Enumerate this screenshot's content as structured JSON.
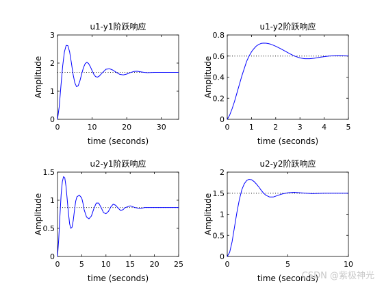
{
  "watermark": "CSDN @紫极神光",
  "chart_data": [
    {
      "type": "line",
      "title": "u1-y1阶跃响应",
      "xlabel": "time (seconds)",
      "ylabel": "Amplitude",
      "xlim": [
        0,
        35
      ],
      "ylim": [
        0,
        3
      ],
      "xticks": [
        0,
        10,
        20,
        30
      ],
      "yticks": [
        0,
        1,
        2,
        3
      ],
      "final_value": 1.67,
      "series": [
        {
          "x": [
            0,
            0.5,
            1,
            1.5,
            2,
            2.5,
            3,
            3.5,
            4,
            4.5,
            5,
            5.5,
            6,
            6.5,
            7,
            7.5,
            8,
            8.5,
            9,
            9.5,
            10,
            10.5,
            11,
            11.5,
            12,
            13,
            14,
            15,
            16,
            17,
            18,
            19,
            20,
            21,
            22,
            23,
            24,
            25,
            26,
            28,
            30,
            32,
            35
          ],
          "values": [
            0,
            0.45,
            1.2,
            1.9,
            2.4,
            2.63,
            2.62,
            2.4,
            2.02,
            1.6,
            1.3,
            1.16,
            1.2,
            1.38,
            1.62,
            1.84,
            1.98,
            2.03,
            1.98,
            1.87,
            1.73,
            1.6,
            1.52,
            1.5,
            1.53,
            1.66,
            1.78,
            1.8,
            1.75,
            1.67,
            1.6,
            1.58,
            1.61,
            1.66,
            1.7,
            1.71,
            1.69,
            1.67,
            1.66,
            1.67,
            1.67,
            1.67,
            1.67
          ]
        }
      ]
    },
    {
      "type": "line",
      "title": "u1-y2阶跃响应",
      "xlabel": "time (seconds)",
      "ylabel": "Amplitude",
      "xlim": [
        0,
        5
      ],
      "ylim": [
        0,
        0.8
      ],
      "xticks": [
        0,
        1,
        2,
        3,
        4,
        5
      ],
      "yticks": [
        0,
        0.2,
        0.4,
        0.6,
        0.8
      ],
      "final_value": 0.6,
      "series": [
        {
          "x": [
            0,
            0.1,
            0.2,
            0.3,
            0.4,
            0.5,
            0.6,
            0.7,
            0.8,
            0.9,
            1.0,
            1.1,
            1.2,
            1.3,
            1.4,
            1.5,
            1.6,
            1.7,
            1.8,
            1.9,
            2.0,
            2.2,
            2.4,
            2.6,
            2.8,
            3.0,
            3.2,
            3.4,
            3.6,
            3.8,
            4.0,
            4.2,
            4.4,
            4.6,
            4.8,
            5.0
          ],
          "values": [
            0,
            0.04,
            0.1,
            0.17,
            0.25,
            0.33,
            0.41,
            0.48,
            0.55,
            0.6,
            0.64,
            0.67,
            0.695,
            0.71,
            0.72,
            0.723,
            0.722,
            0.718,
            0.712,
            0.703,
            0.693,
            0.67,
            0.645,
            0.62,
            0.598,
            0.582,
            0.575,
            0.575,
            0.58,
            0.588,
            0.594,
            0.6,
            0.603,
            0.604,
            0.603,
            0.601
          ]
        }
      ]
    },
    {
      "type": "line",
      "title": "u2-y1阶跃响应",
      "xlabel": "time (seconds)",
      "ylabel": "Amplitude",
      "xlim": [
        0,
        25
      ],
      "ylim": [
        0,
        1.5
      ],
      "xticks": [
        0,
        5,
        10,
        15,
        20,
        25
      ],
      "yticks": [
        0,
        0.5,
        1,
        1.5
      ],
      "final_value": 0.87,
      "series": [
        {
          "x": [
            0,
            0.25,
            0.5,
            0.75,
            1.0,
            1.25,
            1.5,
            1.75,
            2.0,
            2.25,
            2.5,
            2.75,
            3.0,
            3.25,
            3.5,
            3.75,
            4.0,
            4.5,
            5.0,
            5.25,
            5.5,
            6.0,
            6.5,
            7.0,
            7.5,
            8.0,
            8.5,
            9.0,
            9.5,
            10,
            10.5,
            11,
            11.5,
            12,
            12.5,
            13,
            13.5,
            14,
            15,
            16,
            17,
            18,
            20,
            22,
            25
          ],
          "values": [
            0,
            0.3,
            0.72,
            1.1,
            1.33,
            1.42,
            1.4,
            1.25,
            1.02,
            0.78,
            0.58,
            0.5,
            0.52,
            0.64,
            0.82,
            0.98,
            1.06,
            1.09,
            1.04,
            0.95,
            0.83,
            0.7,
            0.67,
            0.72,
            0.85,
            0.95,
            0.95,
            0.87,
            0.78,
            0.76,
            0.8,
            0.88,
            0.93,
            0.91,
            0.86,
            0.82,
            0.83,
            0.87,
            0.9,
            0.87,
            0.85,
            0.87,
            0.87,
            0.87,
            0.87
          ]
        }
      ]
    },
    {
      "type": "line",
      "title": "u2-y2阶跃响应",
      "xlabel": "time (seconds)",
      "ylabel": "Amplitude",
      "xlim": [
        0,
        10
      ],
      "ylim": [
        0,
        2
      ],
      "xticks": [
        0,
        5,
        10
      ],
      "yticks": [
        0,
        0.5,
        1,
        1.5,
        2
      ],
      "final_value": 1.5,
      "series": [
        {
          "x": [
            0,
            0.2,
            0.4,
            0.6,
            0.8,
            1.0,
            1.2,
            1.4,
            1.6,
            1.8,
            2.0,
            2.2,
            2.4,
            2.6,
            2.8,
            3.0,
            3.2,
            3.5,
            3.8,
            4.0,
            4.2,
            4.5,
            5.0,
            5.5,
            6.0,
            6.5,
            7.0,
            8.0,
            9.0,
            10.0
          ],
          "values": [
            0,
            0.1,
            0.35,
            0.7,
            1.05,
            1.35,
            1.58,
            1.72,
            1.8,
            1.83,
            1.82,
            1.78,
            1.72,
            1.65,
            1.57,
            1.5,
            1.45,
            1.41,
            1.41,
            1.43,
            1.45,
            1.48,
            1.51,
            1.52,
            1.51,
            1.5,
            1.49,
            1.5,
            1.5,
            1.5
          ]
        }
      ]
    }
  ]
}
